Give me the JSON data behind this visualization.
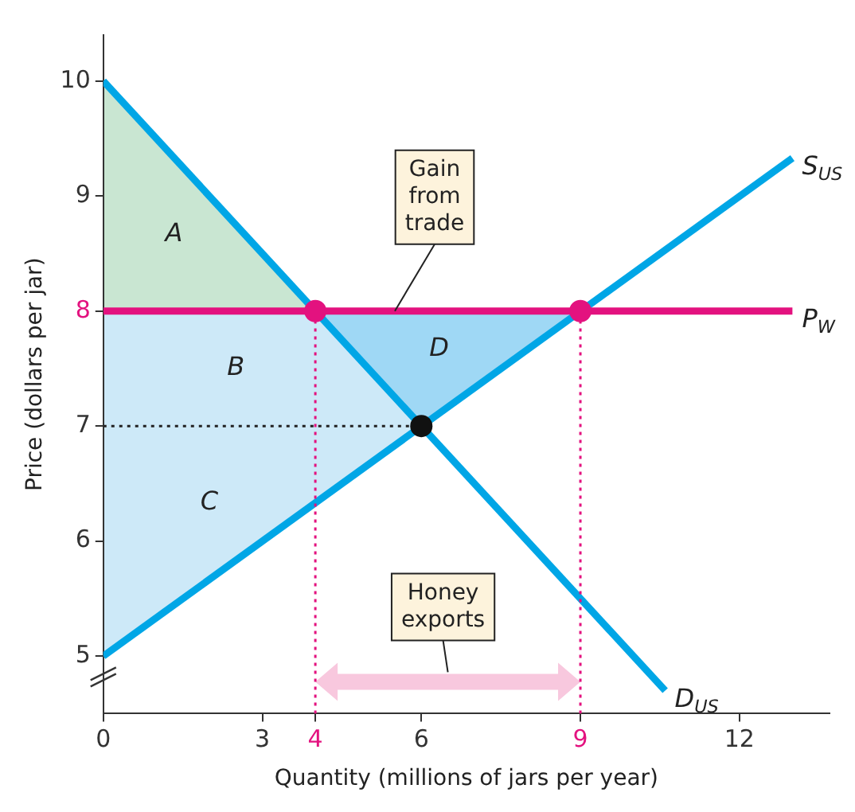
{
  "chart_data": {
    "type": "line",
    "xlabel": "Quantity (millions of jars per year)",
    "ylabel": "Price (dollars per jar)",
    "xlim": [
      0,
      13.7
    ],
    "xticks": [
      0,
      3,
      4,
      6,
      9,
      12
    ],
    "ylim": [
      4.5,
      10.4
    ],
    "yticks": [
      5,
      6,
      7,
      8,
      9,
      10
    ],
    "grid": false,
    "legend": false,
    "series": [
      {
        "name": "S$_{US}$",
        "color": "#00a6e6",
        "x": [
          0,
          13
        ],
        "values": [
          5,
          9.33
        ],
        "marker": "none",
        "line_style": "solid"
      },
      {
        "name": "D$_{US}$",
        "color": "#00a6e6",
        "x": [
          0,
          10.6
        ],
        "values": [
          10,
          4.7
        ],
        "marker": "none",
        "line_style": "solid"
      },
      {
        "name": "P$_{W}$",
        "color": "#e3127f",
        "x": [
          0,
          13
        ],
        "values": [
          8,
          8
        ],
        "marker": "none",
        "line_style": "solid"
      },
      {
        "color": "#e3127f",
        "x": [
          4,
          4
        ],
        "values": [
          4.5,
          8
        ],
        "marker": "none",
        "line_style": "dotted"
      },
      {
        "color": "#e3127f",
        "x": [
          9,
          9
        ],
        "values": [
          4.5,
          8
        ],
        "marker": "none",
        "line_style": "dotted"
      },
      {
        "color": "#222222",
        "x": [
          0,
          6
        ],
        "values": [
          7,
          7
        ],
        "marker": "none",
        "line_style": "dotted"
      },
      {
        "type": "scatter",
        "colors": [
          "#e3127f",
          "#e3127f",
          "#111111"
        ],
        "x": [
          4,
          9,
          6
        ],
        "values": [
          8,
          8,
          7
        ],
        "marker": "circle"
      }
    ],
    "annotations": [
      "A",
      "B",
      "C",
      "D",
      {
        "text": "Gain from trade",
        "x": 5.5,
        "y": 8
      },
      "Honey exports"
    ]
  }
}
